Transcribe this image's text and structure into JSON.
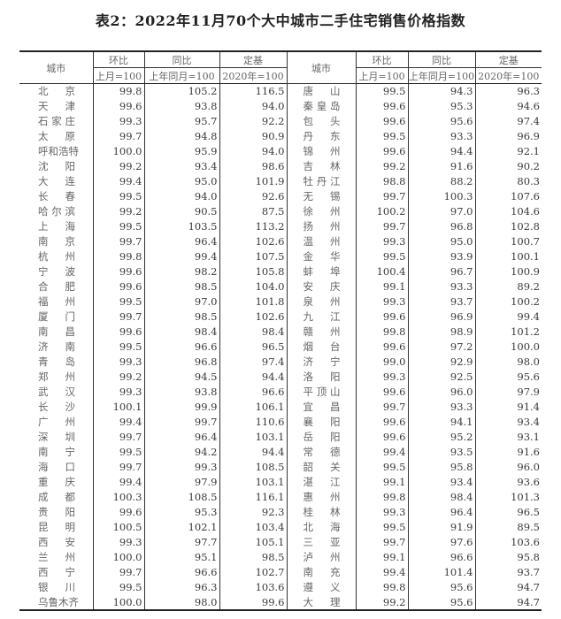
{
  "title": "表2：2022年11月70个大中城市二手住宅销售价格指数",
  "headers": {
    "city": "城市",
    "mom": "环比",
    "mom_base": "上月=100",
    "yoy": "同比",
    "yoy_base": "上年同月=100",
    "fixed": "定基",
    "fixed_base": "2020年=100"
  },
  "left_rows": [
    [
      "北京",
      "99.8",
      "105.2",
      "116.5"
    ],
    [
      "天津",
      "99.6",
      "93.8",
      "94.0"
    ],
    [
      "石家庄",
      "99.3",
      "95.7",
      "92.2"
    ],
    [
      "太原",
      "99.7",
      "94.8",
      "90.9"
    ],
    [
      "呼和浩特",
      "100.0",
      "95.9",
      "94.0"
    ],
    [
      "沈阳",
      "99.2",
      "93.4",
      "98.6"
    ],
    [
      "大连",
      "99.4",
      "95.0",
      "101.9"
    ],
    [
      "长春",
      "99.5",
      "94.0",
      "92.6"
    ],
    [
      "哈尔滨",
      "99.2",
      "90.5",
      "87.5"
    ],
    [
      "上海",
      "99.5",
      "103.5",
      "113.2"
    ],
    [
      "南京",
      "99.7",
      "96.4",
      "102.6"
    ],
    [
      "杭州",
      "99.8",
      "99.4",
      "107.5"
    ],
    [
      "宁波",
      "99.6",
      "98.2",
      "105.8"
    ],
    [
      "合肥",
      "99.6",
      "98.5",
      "104.0"
    ],
    [
      "福州",
      "99.5",
      "97.0",
      "101.8"
    ],
    [
      "厦门",
      "99.7",
      "98.5",
      "102.6"
    ],
    [
      "南昌",
      "99.6",
      "98.4",
      "98.4"
    ],
    [
      "济南",
      "99.5",
      "96.6",
      "96.5"
    ],
    [
      "青岛",
      "99.3",
      "96.8",
      "97.4"
    ],
    [
      "郑州",
      "99.2",
      "94.5",
      "94.4"
    ],
    [
      "武汉",
      "99.3",
      "93.8",
      "96.6"
    ],
    [
      "长沙",
      "100.1",
      "99.9",
      "106.1"
    ],
    [
      "广州",
      "99.4",
      "99.7",
      "110.6"
    ],
    [
      "深圳",
      "99.7",
      "96.4",
      "103.1"
    ],
    [
      "南宁",
      "99.5",
      "94.2",
      "94.4"
    ],
    [
      "海口",
      "99.7",
      "99.3",
      "108.5"
    ],
    [
      "重庆",
      "99.4",
      "97.9",
      "103.1"
    ],
    [
      "成都",
      "100.3",
      "108.5",
      "116.1"
    ],
    [
      "贵阳",
      "99.6",
      "95.3",
      "92.3"
    ],
    [
      "昆明",
      "100.5",
      "102.1",
      "103.4"
    ],
    [
      "西安",
      "99.3",
      "97.7",
      "105.1"
    ],
    [
      "兰州",
      "100.0",
      "95.1",
      "98.5"
    ],
    [
      "西宁",
      "99.7",
      "96.6",
      "102.7"
    ],
    [
      "银川",
      "99.5",
      "96.3",
      "103.6"
    ],
    [
      "乌鲁木齐",
      "100.0",
      "98.0",
      "99.6"
    ]
  ],
  "right_rows": [
    [
      "唐山",
      "99.5",
      "94.3",
      "96.3"
    ],
    [
      "秦皇岛",
      "99.6",
      "95.3",
      "94.6"
    ],
    [
      "包头",
      "99.6",
      "95.6",
      "97.4"
    ],
    [
      "丹东",
      "99.5",
      "93.3",
      "96.9"
    ],
    [
      "锦州",
      "99.6",
      "94.4",
      "92.1"
    ],
    [
      "吉林",
      "99.2",
      "91.6",
      "90.2"
    ],
    [
      "牡丹江",
      "98.8",
      "88.2",
      "80.3"
    ],
    [
      "无锡",
      "99.7",
      "100.3",
      "107.6"
    ],
    [
      "徐州",
      "100.2",
      "97.0",
      "104.6"
    ],
    [
      "扬州",
      "99.7",
      "96.8",
      "102.8"
    ],
    [
      "温州",
      "99.3",
      "95.0",
      "100.7"
    ],
    [
      "金华",
      "99.5",
      "93.9",
      "100.1"
    ],
    [
      "蚌埠",
      "100.4",
      "96.7",
      "100.9"
    ],
    [
      "安庆",
      "99.1",
      "93.3",
      "89.2"
    ],
    [
      "泉州",
      "99.3",
      "93.7",
      "100.2"
    ],
    [
      "九江",
      "99.6",
      "96.9",
      "99.4"
    ],
    [
      "赣州",
      "99.8",
      "98.9",
      "101.2"
    ],
    [
      "烟台",
      "99.6",
      "97.2",
      "100.0"
    ],
    [
      "济宁",
      "99.0",
      "92.9",
      "98.0"
    ],
    [
      "洛阳",
      "99.3",
      "92.5",
      "95.6"
    ],
    [
      "平顶山",
      "99.6",
      "96.0",
      "97.9"
    ],
    [
      "宜昌",
      "99.7",
      "93.3",
      "91.4"
    ],
    [
      "襄阳",
      "99.6",
      "94.1",
      "93.4"
    ],
    [
      "岳阳",
      "99.6",
      "95.2",
      "93.1"
    ],
    [
      "常德",
      "99.4",
      "93.5",
      "91.6"
    ],
    [
      "韶关",
      "99.5",
      "95.8",
      "96.0"
    ],
    [
      "湛江",
      "99.1",
      "93.4",
      "93.6"
    ],
    [
      "惠州",
      "99.8",
      "98.4",
      "101.3"
    ],
    [
      "桂林",
      "99.3",
      "96.4",
      "96.5"
    ],
    [
      "北海",
      "99.5",
      "91.9",
      "89.5"
    ],
    [
      "三亚",
      "99.7",
      "97.6",
      "103.6"
    ],
    [
      "泸州",
      "99.1",
      "96.6",
      "95.8"
    ],
    [
      "南充",
      "99.4",
      "101.4",
      "93.7"
    ],
    [
      "遵义",
      "99.8",
      "95.6",
      "94.7"
    ],
    [
      "大理",
      "99.2",
      "95.6",
      "94.7"
    ]
  ]
}
